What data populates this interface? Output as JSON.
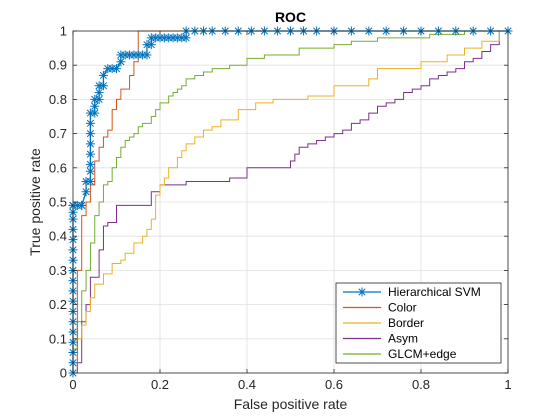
{
  "chart_data": {
    "type": "line",
    "title": "ROC",
    "xlabel": "False positive rate",
    "ylabel": "True positive rate",
    "xlim": [
      0,
      1
    ],
    "ylim": [
      0,
      1
    ],
    "grid": true,
    "legend_position": "bottom-right",
    "x_ticks": [
      {
        "value": 0,
        "label": "0"
      },
      {
        "value": 0.2,
        "label": "0.2"
      },
      {
        "value": 0.4,
        "label": "0.4"
      },
      {
        "value": 0.6,
        "label": "0.6"
      },
      {
        "value": 0.8,
        "label": "0.8"
      },
      {
        "value": 1,
        "label": "1"
      }
    ],
    "y_ticks": [
      {
        "value": 0,
        "label": "0"
      },
      {
        "value": 0.1,
        "label": "0.1"
      },
      {
        "value": 0.2,
        "label": "0.2"
      },
      {
        "value": 0.3,
        "label": "0.3"
      },
      {
        "value": 0.4,
        "label": "0.4"
      },
      {
        "value": 0.5,
        "label": "0.5"
      },
      {
        "value": 0.6,
        "label": "0.6"
      },
      {
        "value": 0.7,
        "label": "0.7"
      },
      {
        "value": 0.8,
        "label": "0.8"
      },
      {
        "value": 0.9,
        "label": "0.9"
      },
      {
        "value": 1,
        "label": "1"
      }
    ],
    "series": [
      {
        "name": "Hierarchical SVM",
        "color": "#0072bd",
        "marker": "asterisk",
        "x": [
          0,
          0,
          0,
          0,
          0,
          0,
          0,
          0,
          0,
          0,
          0,
          0,
          0,
          0,
          0,
          0,
          0,
          0,
          0,
          0,
          0.01,
          0.02,
          0.02,
          0.03,
          0.03,
          0.04,
          0.04,
          0.04,
          0.04,
          0.04,
          0.04,
          0.04,
          0.04,
          0.05,
          0.05,
          0.05,
          0.06,
          0.06,
          0.06,
          0.07,
          0.07,
          0.08,
          0.09,
          0.1,
          0.11,
          0.11,
          0.12,
          0.13,
          0.14,
          0.15,
          0.16,
          0.17,
          0.17,
          0.18,
          0.18,
          0.19,
          0.2,
          0.21,
          0.22,
          0.23,
          0.24,
          0.25,
          0.26,
          0.26,
          0.28,
          0.3,
          0.32,
          0.35,
          0.38,
          0.41,
          0.44,
          0.47,
          0.5,
          0.53,
          0.56,
          0.6,
          0.64,
          0.68,
          0.72,
          0.76,
          0.8,
          0.84,
          0.88,
          0.92,
          0.96,
          1.0
        ],
        "y": [
          0,
          0.03,
          0.06,
          0.09,
          0.12,
          0.15,
          0.18,
          0.21,
          0.24,
          0.27,
          0.3,
          0.33,
          0.36,
          0.39,
          0.42,
          0.45,
          0.47,
          0.49,
          0.49,
          0.49,
          0.49,
          0.49,
          0.49,
          0.53,
          0.56,
          0.56,
          0.59,
          0.61,
          0.64,
          0.67,
          0.7,
          0.73,
          0.76,
          0.76,
          0.78,
          0.8,
          0.8,
          0.82,
          0.84,
          0.84,
          0.87,
          0.89,
          0.89,
          0.89,
          0.91,
          0.93,
          0.93,
          0.93,
          0.93,
          0.93,
          0.93,
          0.93,
          0.96,
          0.96,
          0.98,
          0.98,
          0.98,
          0.98,
          0.98,
          0.98,
          0.98,
          0.98,
          0.98,
          1,
          1,
          1,
          1,
          1,
          1,
          1,
          1,
          1,
          1,
          1,
          1,
          1,
          1,
          1,
          1,
          1,
          1,
          1,
          1,
          1,
          1,
          1
        ]
      },
      {
        "name": "Color",
        "color": "#d95319",
        "x": [
          0,
          0.01,
          0.01,
          0.02,
          0.02,
          0.03,
          0.03,
          0.04,
          0.04,
          0.05,
          0.05,
          0.06,
          0.06,
          0.07,
          0.07,
          0.08,
          0.08,
          0.09,
          0.09,
          0.1,
          0.1,
          0.11,
          0.11,
          0.12,
          0.12,
          0.13,
          0.13,
          0.14,
          0.14,
          0.15,
          0.15,
          1.0
        ],
        "y": [
          0,
          0,
          0.3,
          0.3,
          0.46,
          0.46,
          0.5,
          0.5,
          0.55,
          0.55,
          0.62,
          0.62,
          0.66,
          0.66,
          0.69,
          0.69,
          0.71,
          0.71,
          0.77,
          0.77,
          0.8,
          0.8,
          0.83,
          0.83,
          0.83,
          0.83,
          0.87,
          0.87,
          0.91,
          0.91,
          1,
          1
        ]
      },
      {
        "name": "Border",
        "color": "#edb120",
        "x": [
          0,
          0,
          0.01,
          0.01,
          0.02,
          0.02,
          0.03,
          0.03,
          0.04,
          0.04,
          0.05,
          0.05,
          0.07,
          0.07,
          0.09,
          0.09,
          0.11,
          0.11,
          0.12,
          0.12,
          0.14,
          0.14,
          0.16,
          0.16,
          0.17,
          0.17,
          0.18,
          0.18,
          0.19,
          0.19,
          0.2,
          0.2,
          0.21,
          0.21,
          0.22,
          0.22,
          0.24,
          0.24,
          0.25,
          0.25,
          0.26,
          0.26,
          0.28,
          0.28,
          0.3,
          0.3,
          0.32,
          0.32,
          0.34,
          0.34,
          0.38,
          0.38,
          0.42,
          0.42,
          0.46,
          0.46,
          0.5,
          0.5,
          0.54,
          0.54,
          0.6,
          0.6,
          0.68,
          0.68,
          0.7,
          0.7,
          0.8,
          0.8,
          0.86,
          0.86,
          0.9,
          0.9,
          0.94,
          0.94,
          0.98,
          0.98,
          1.0
        ],
        "y": [
          0,
          0.06,
          0.06,
          0.1,
          0.1,
          0.14,
          0.14,
          0.18,
          0.18,
          0.22,
          0.22,
          0.26,
          0.26,
          0.29,
          0.29,
          0.32,
          0.32,
          0.33,
          0.33,
          0.35,
          0.35,
          0.38,
          0.38,
          0.4,
          0.4,
          0.42,
          0.42,
          0.45,
          0.45,
          0.52,
          0.52,
          0.55,
          0.55,
          0.57,
          0.57,
          0.6,
          0.6,
          0.63,
          0.63,
          0.65,
          0.65,
          0.67,
          0.67,
          0.69,
          0.69,
          0.71,
          0.71,
          0.72,
          0.72,
          0.74,
          0.74,
          0.77,
          0.77,
          0.79,
          0.79,
          0.8,
          0.8,
          0.8,
          0.8,
          0.81,
          0.81,
          0.84,
          0.84,
          0.86,
          0.86,
          0.89,
          0.89,
          0.91,
          0.91,
          0.93,
          0.93,
          0.95,
          0.95,
          0.97,
          0.97,
          1,
          1
        ]
      },
      {
        "name": "Asym",
        "color": "#7e2f8e",
        "x": [
          0,
          0.01,
          0.01,
          0.02,
          0.02,
          0.03,
          0.03,
          0.04,
          0.04,
          0.06,
          0.06,
          0.07,
          0.07,
          0.08,
          0.08,
          0.1,
          0.1,
          0.18,
          0.18,
          0.2,
          0.2,
          0.26,
          0.26,
          0.36,
          0.36,
          0.4,
          0.4,
          0.5,
          0.5,
          0.51,
          0.51,
          0.52,
          0.52,
          0.54,
          0.54,
          0.56,
          0.56,
          0.58,
          0.58,
          0.6,
          0.6,
          0.62,
          0.62,
          0.64,
          0.64,
          0.66,
          0.66,
          0.68,
          0.68,
          0.7,
          0.7,
          0.72,
          0.72,
          0.74,
          0.74,
          0.76,
          0.76,
          0.78,
          0.78,
          0.8,
          0.8,
          0.82,
          0.82,
          0.84,
          0.84,
          0.86,
          0.86,
          0.88,
          0.88,
          0.9,
          0.9,
          0.92,
          0.92,
          0.94,
          0.94,
          0.96,
          0.96,
          0.98,
          0.98,
          1.0
        ],
        "y": [
          0,
          0,
          0.03,
          0.03,
          0.15,
          0.15,
          0.2,
          0.2,
          0.28,
          0.28,
          0.36,
          0.36,
          0.43,
          0.43,
          0.44,
          0.44,
          0.49,
          0.49,
          0.53,
          0.53,
          0.55,
          0.55,
          0.56,
          0.56,
          0.57,
          0.57,
          0.6,
          0.6,
          0.62,
          0.62,
          0.64,
          0.64,
          0.66,
          0.66,
          0.67,
          0.67,
          0.68,
          0.68,
          0.69,
          0.69,
          0.7,
          0.7,
          0.71,
          0.71,
          0.73,
          0.73,
          0.74,
          0.74,
          0.76,
          0.76,
          0.78,
          0.78,
          0.79,
          0.79,
          0.8,
          0.8,
          0.82,
          0.82,
          0.83,
          0.83,
          0.84,
          0.84,
          0.86,
          0.86,
          0.87,
          0.87,
          0.88,
          0.88,
          0.89,
          0.89,
          0.91,
          0.91,
          0.92,
          0.92,
          0.94,
          0.94,
          0.96,
          0.96,
          1,
          1
        ]
      },
      {
        "name": "GLCM+edge",
        "color": "#77ac30",
        "x": [
          0,
          0,
          0.01,
          0.01,
          0.02,
          0.02,
          0.03,
          0.03,
          0.04,
          0.04,
          0.05,
          0.05,
          0.06,
          0.06,
          0.07,
          0.07,
          0.08,
          0.08,
          0.09,
          0.09,
          0.1,
          0.1,
          0.11,
          0.11,
          0.12,
          0.12,
          0.13,
          0.13,
          0.14,
          0.14,
          0.15,
          0.15,
          0.16,
          0.16,
          0.18,
          0.18,
          0.19,
          0.19,
          0.2,
          0.2,
          0.22,
          0.22,
          0.23,
          0.23,
          0.24,
          0.24,
          0.25,
          0.25,
          0.26,
          0.26,
          0.28,
          0.28,
          0.3,
          0.3,
          0.32,
          0.32,
          0.36,
          0.36,
          0.4,
          0.4,
          0.44,
          0.44,
          0.52,
          0.52,
          0.6,
          0.6,
          0.64,
          0.64,
          0.7,
          0.7,
          0.82,
          0.82,
          0.9,
          0.9,
          1.0
        ],
        "y": [
          0,
          0.07,
          0.07,
          0.15,
          0.15,
          0.24,
          0.24,
          0.3,
          0.3,
          0.38,
          0.38,
          0.46,
          0.46,
          0.5,
          0.5,
          0.55,
          0.55,
          0.56,
          0.56,
          0.6,
          0.6,
          0.63,
          0.63,
          0.66,
          0.66,
          0.68,
          0.68,
          0.69,
          0.69,
          0.7,
          0.7,
          0.72,
          0.72,
          0.73,
          0.73,
          0.75,
          0.75,
          0.77,
          0.77,
          0.79,
          0.79,
          0.81,
          0.81,
          0.82,
          0.82,
          0.83,
          0.83,
          0.84,
          0.84,
          0.86,
          0.86,
          0.87,
          0.87,
          0.88,
          0.88,
          0.89,
          0.89,
          0.9,
          0.9,
          0.92,
          0.92,
          0.93,
          0.93,
          0.95,
          0.95,
          0.96,
          0.96,
          0.97,
          0.97,
          0.98,
          0.98,
          0.99,
          0.99,
          1,
          1
        ]
      }
    ]
  }
}
